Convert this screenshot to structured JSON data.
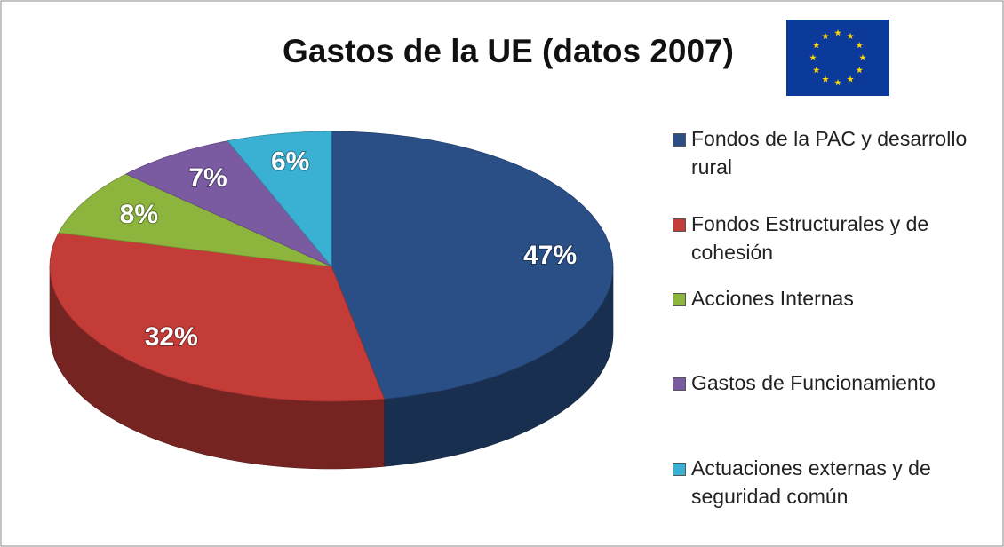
{
  "chart_data": {
    "type": "pie3d",
    "title": "Gastos de la UE (datos 2007)",
    "categories": [
      "Fondos de la PAC y desarrollo rural",
      "Fondos Estructurales y de cohesión",
      "Acciones Internas",
      "Gastos de Funcionamiento",
      "Actuaciones externas y de seguridad común"
    ],
    "values": [
      47,
      32,
      8,
      7,
      6
    ],
    "value_labels": [
      "47%",
      "32%",
      "8%",
      "7%",
      "6%"
    ],
    "colors": [
      "#2a4f86",
      "#c43c38",
      "#8db43c",
      "#7a5aa0",
      "#3ab0d2"
    ]
  }
}
